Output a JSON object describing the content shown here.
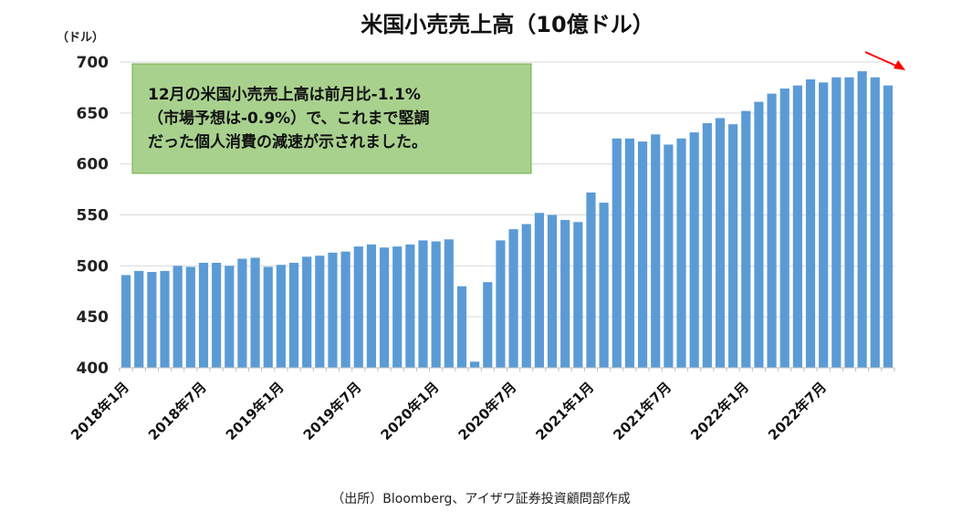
{
  "chart_data": {
    "type": "bar",
    "title": "米国小売売上高（10億ドル）",
    "ylabel": "（ドル）",
    "ylim": [
      400,
      700
    ],
    "yticks": [
      400,
      450,
      500,
      550,
      600,
      650,
      700
    ],
    "grid": true,
    "xtick_labels": [
      "2018年1月",
      "2018年7月",
      "2019年1月",
      "2019年7月",
      "2020年1月",
      "2020年7月",
      "2021年1月",
      "2021年7月",
      "2022年1月",
      "2022年7月"
    ],
    "categories": [
      "2018-01",
      "2018-02",
      "2018-03",
      "2018-04",
      "2018-05",
      "2018-06",
      "2018-07",
      "2018-08",
      "2018-09",
      "2018-10",
      "2018-11",
      "2018-12",
      "2019-01",
      "2019-02",
      "2019-03",
      "2019-04",
      "2019-05",
      "2019-06",
      "2019-07",
      "2019-08",
      "2019-09",
      "2019-10",
      "2019-11",
      "2019-12",
      "2020-01",
      "2020-02",
      "2020-03",
      "2020-04",
      "2020-05",
      "2020-06",
      "2020-07",
      "2020-08",
      "2020-09",
      "2020-10",
      "2020-11",
      "2020-12",
      "2021-01",
      "2021-02",
      "2021-03",
      "2021-04",
      "2021-05",
      "2021-06",
      "2021-07",
      "2021-08",
      "2021-09",
      "2021-10",
      "2021-11",
      "2021-12",
      "2022-01",
      "2022-02",
      "2022-03",
      "2022-04",
      "2022-05",
      "2022-06",
      "2022-07",
      "2022-08",
      "2022-09",
      "2022-10",
      "2022-11",
      "2022-12"
    ],
    "values": [
      491,
      495,
      494,
      495,
      500,
      499,
      503,
      503,
      500,
      507,
      508,
      499,
      501,
      503,
      509,
      510,
      513,
      514,
      519,
      521,
      518,
      519,
      521,
      525,
      524,
      526,
      480,
      406,
      484,
      525,
      536,
      541,
      552,
      550,
      545,
      543,
      572,
      562,
      625,
      625,
      622,
      629,
      619,
      625,
      631,
      640,
      645,
      639,
      652,
      661,
      669,
      674,
      677,
      683,
      680,
      685,
      685,
      691,
      685,
      677
    ],
    "color": "#5b9bd5",
    "annotation": {
      "lines": [
        "12月の米国小売売上高は前月比-1.1%",
        "（市場予想は-0.9%）で、これまで堅調",
        "だった個人消費の減速が示されました。"
      ],
      "fill": "#a9d18e",
      "border": "#70ad47"
    },
    "arrow_color": "#ff0000",
    "source": "（出所）Bloomberg、アイザワ証券投資顧問部作成"
  }
}
